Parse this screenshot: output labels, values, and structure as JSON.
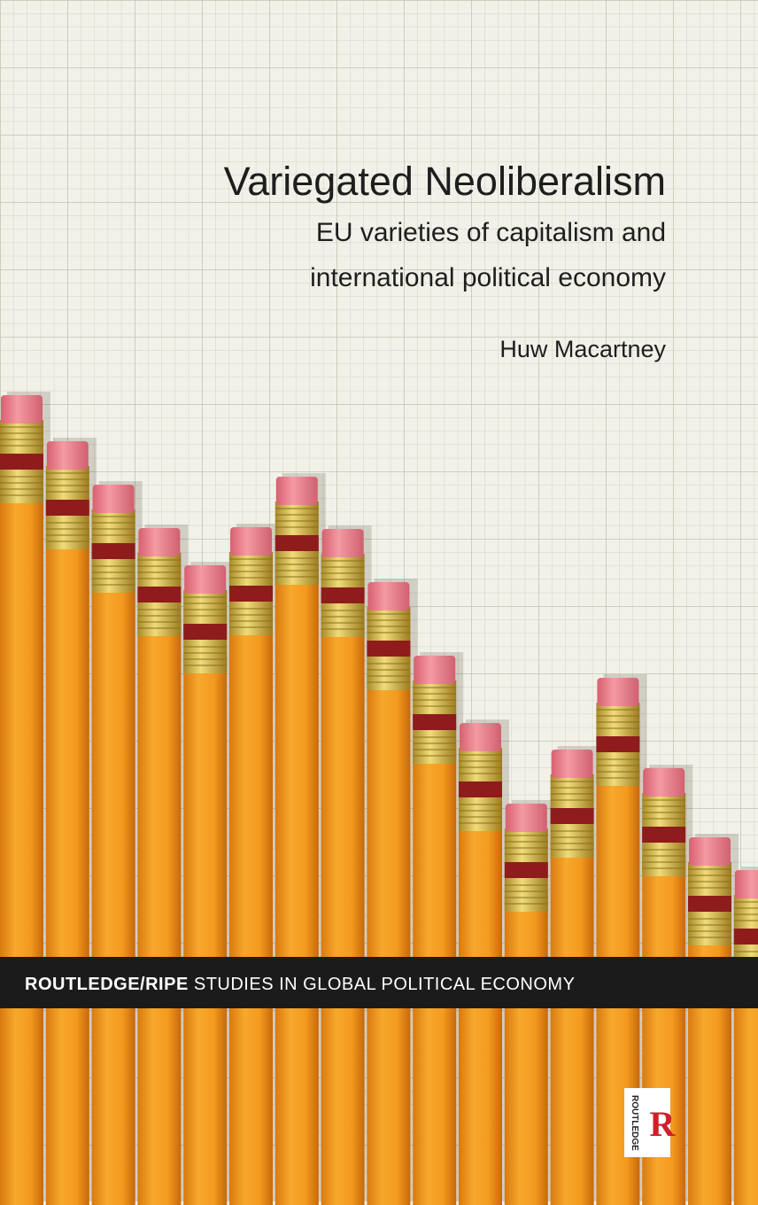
{
  "cover": {
    "title": "Variegated Neoliberalism",
    "subtitle_lines": [
      "EU varieties of capitalism and",
      "international political economy"
    ],
    "author": "Huw Macartney",
    "series": {
      "bold": "ROUTLEDGE/RIPE",
      "rest": "STUDIES IN GLOBAL POLITICAL ECONOMY"
    },
    "publisher": "ROUTLEDGE"
  }
}
